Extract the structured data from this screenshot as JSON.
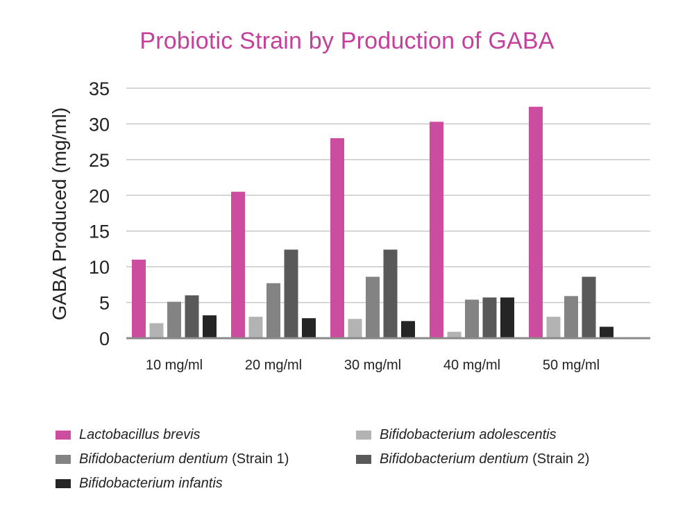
{
  "chart_data": {
    "type": "bar",
    "title": "Probiotic Strain by Production of GABA",
    "xlabel": "",
    "ylabel": "GABA Produced (mg/ml)",
    "ylim": [
      0,
      35
    ],
    "yticks": [
      "0",
      "5",
      "10",
      "15",
      "20",
      "25",
      "30",
      "35"
    ],
    "grid": true,
    "legend_position": "bottom",
    "categories": [
      "10 mg/ml",
      "20 mg/ml",
      "30 mg/ml",
      "40 mg/ml",
      "50 mg/ml"
    ],
    "series": [
      {
        "name": "Lactobacillus brevis",
        "name_suffix": "",
        "color": "#cc4c9f",
        "values": [
          11,
          20.5,
          28,
          30.3,
          32.4
        ]
      },
      {
        "name": "Bifidobacterium adolescentis",
        "name_suffix": "",
        "color": "#b3b3b3",
        "values": [
          2.1,
          3,
          2.7,
          0.9,
          3
        ]
      },
      {
        "name": "Bifidobacterium dentium",
        "name_suffix": " (Strain 1)",
        "color": "#838383",
        "values": [
          5.1,
          7.7,
          8.6,
          5.4,
          5.9
        ]
      },
      {
        "name": "Bifidobacterium dentium",
        "name_suffix": " (Strain 2)",
        "color": "#595959",
        "values": [
          6,
          12.4,
          12.4,
          5.7,
          8.6
        ]
      },
      {
        "name": "Bifidobacterium infantis",
        "name_suffix": "",
        "color": "#252525",
        "values": [
          3.2,
          2.8,
          2.4,
          5.7,
          1.6
        ]
      }
    ]
  },
  "legend_order": [
    0,
    1,
    2,
    3,
    4
  ]
}
